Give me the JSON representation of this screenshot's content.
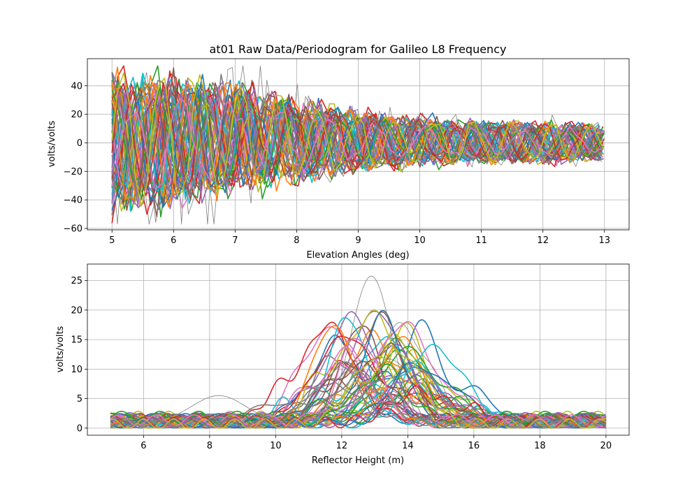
{
  "figure": {
    "title": "at01 Raw Data/Periodogram for Galileo L8 Frequency"
  },
  "palette": [
    "#1f77b4",
    "#ff7f0e",
    "#2ca02c",
    "#d62728",
    "#9467bd",
    "#8c564b",
    "#e377c2",
    "#7f7f7f",
    "#bcbd22",
    "#17becf"
  ],
  "highlight_color": "#808080",
  "chart_data": [
    {
      "type": "line",
      "panel": "top",
      "xlabel": "Elevation Angles (deg)",
      "ylabel": "volts/volts",
      "xlim": [
        4.6,
        13.4
      ],
      "ylim": [
        -61,
        59
      ],
      "xticks": [
        5,
        6,
        7,
        8,
        9,
        10,
        11,
        12,
        13
      ],
      "yticks": [
        -60,
        -40,
        -20,
        0,
        20,
        40
      ],
      "grid": true,
      "series_count": 60,
      "envelope": {
        "x": [
          5,
          6,
          7,
          8,
          9,
          10,
          11,
          12,
          13
        ],
        "upper": [
          48,
          46,
          42,
          30,
          22,
          17,
          15,
          14,
          13
        ],
        "lower": [
          -48,
          -42,
          -34,
          -26,
          -20,
          -15,
          -14,
          -14,
          -12
        ]
      }
    },
    {
      "type": "line",
      "panel": "bottom",
      "xlabel": "Reflector Height (m)",
      "ylabel": "volts/volts",
      "xlim": [
        4.3,
        20.7
      ],
      "ylim": [
        -1.2,
        27.8
      ],
      "xticks": [
        6,
        8,
        10,
        12,
        14,
        16,
        18,
        20
      ],
      "yticks": [
        0,
        5,
        10,
        15,
        20,
        25
      ],
      "grid": true,
      "series_count": 60,
      "peak_height_range": [
        11.6,
        14.8
      ],
      "peak_amplitude_range": [
        5,
        19
      ],
      "max_peak": {
        "x": 12.9,
        "y": 26.2
      }
    }
  ]
}
